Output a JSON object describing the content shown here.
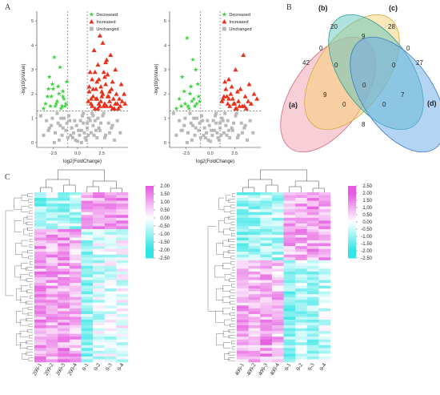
{
  "figure": {
    "panel_labels": {
      "A": "A",
      "B": "B",
      "C": "C"
    }
  },
  "chart_data": [
    {
      "type": "scatter",
      "id": "volcano-left",
      "xlabel": "log2(FoldChange)",
      "ylabel": "-log10(pValue)",
      "xlim": [
        -4.2,
        5.2
      ],
      "ylim": [
        -0.2,
        5.4
      ],
      "x_ticks": [
        "-2.5",
        "0.0",
        "2.5"
      ],
      "y_ticks": [
        "0",
        "1",
        "2",
        "3",
        "4",
        "5"
      ],
      "legend": [
        "Decreased",
        "Increased",
        "Unchanged"
      ],
      "legend_position": "top-right",
      "thresholds": {
        "x": [
          -1,
          1
        ],
        "y": 1.3
      },
      "colors": {
        "decreased": "#3cd23c",
        "increased": "#e8301a",
        "unchanged": "#b8b8b8",
        "threshold": "#555555"
      },
      "series": [
        {
          "name": "Decreased",
          "x": [
            -1.8,
            -2.6,
            -3.1,
            -2.2,
            -1.5,
            -2.9,
            -1.3,
            -2.4,
            -3.5,
            -1.9,
            -2.1,
            -1.6,
            -2.7,
            -3.3,
            -1.4,
            -2.0,
            -2.5,
            -1.7,
            -3.0,
            -2.3,
            -1.2,
            -1.1,
            -2.8,
            -1.5
          ],
          "y": [
            3.1,
            2.4,
            1.9,
            1.6,
            2.1,
            2.7,
            1.5,
            3.5,
            1.4,
            2.0,
            1.7,
            1.5,
            1.9,
            1.6,
            1.8,
            2.3,
            2.2,
            1.4,
            2.2,
            1.5,
            1.6,
            2.5,
            1.5,
            1.9
          ]
        },
        {
          "name": "Increased",
          "x": [
            2.6,
            2.1,
            3.4,
            1.8,
            2.9,
            1.5,
            3.9,
            4.5,
            1.6,
            2.3,
            1.2,
            3.1,
            4.0,
            2.5,
            3.6,
            4.3,
            1.9,
            2.0,
            2.8,
            3.3,
            1.4,
            2.4,
            3.0,
            4.8,
            3.8,
            1.7,
            2.2,
            3.5,
            2.7,
            4.1,
            1.3,
            2.6,
            3.2,
            1.8,
            2.9,
            4.4,
            1.1,
            2.0,
            3.7,
            2.5,
            1.6,
            3.0,
            4.6,
            2.2,
            1.5,
            3.4,
            2.8,
            1.9,
            3.3,
            4.2,
            2.4,
            1.2,
            3.9,
            2.1,
            2.7,
            1.4,
            3.6,
            4.9,
            2.3,
            3.1
          ],
          "y": [
            4.1,
            3.2,
            3.6,
            2.9,
            3.3,
            2.6,
            3.0,
            2.4,
            2.2,
            4.4,
            2.1,
            2.8,
            2.0,
            1.9,
            2.5,
            1.8,
            1.8,
            2.5,
            2.7,
            1.7,
            1.6,
            2.3,
            1.5,
            2.0,
            1.4,
            3.8,
            1.6,
            2.2,
            1.5,
            1.6,
            2.9,
            2.0,
            1.9,
            1.4,
            2.4,
            1.5,
            1.7,
            1.8,
            1.8,
            2.1,
            1.9,
            3.4,
            1.7,
            2.6,
            1.5,
            1.5,
            1.6,
            2.2,
            2.1,
            1.4,
            1.7,
            2.3,
            1.6,
            1.4,
            2.9,
            1.8,
            1.4,
            1.6,
            1.5,
            1.9
          ]
        },
        {
          "name": "Unchanged",
          "x": [
            -3.8,
            -3.2,
            -2.9,
            -2.6,
            -2.3,
            -2.0,
            -1.8,
            -1.6,
            -1.4,
            -1.2,
            -1.0,
            -0.8,
            -0.6,
            -0.4,
            -0.2,
            0.0,
            0.2,
            0.4,
            0.6,
            0.8,
            1.0,
            1.2,
            1.4,
            1.6,
            1.8,
            2.0,
            2.3,
            2.6,
            2.9,
            3.2,
            3.5,
            3.8,
            4.1,
            -3.5,
            -2.7,
            -2.1,
            -1.5,
            -0.9,
            -0.5,
            -0.1,
            0.3,
            0.7,
            1.1,
            1.5,
            1.9,
            2.4,
            2.8,
            3.3,
            -2.4,
            -1.7,
            -1.1,
            -0.7,
            0.1,
            0.5,
            0.9,
            1.3,
            1.7,
            2.2,
            2.7,
            3.6,
            -3.0,
            -1.9,
            -0.3,
            0.6,
            1.0,
            4.4,
            -0.6,
            0.4,
            1.6,
            2.1
          ],
          "y": [
            1.1,
            0.9,
            0.6,
            1.0,
            0.4,
            0.8,
            0.7,
            0.3,
            1.0,
            0.5,
            0.2,
            0.9,
            0.6,
            0.4,
            0.1,
            0.05,
            0.3,
            0.5,
            0.8,
            0.2,
            0.6,
            1.0,
            0.4,
            0.7,
            0.9,
            0.2,
            0.5,
            1.1,
            0.3,
            0.8,
            0.6,
            0.1,
            0.9,
            0.3,
            0.7,
            1.2,
            0.6,
            1.1,
            0.2,
            0.7,
            0.9,
            0.4,
            0.3,
            1.2,
            0.5,
            0.8,
            0.2,
            0.4,
            0.0,
            1.0,
            0.8,
            0.3,
            0.5,
            1.1,
            0.1,
            0.9,
            0.3,
            0.6,
            1.2,
            0.7,
            0.5,
            0.1,
            0.9,
            1.2,
            0.8,
            0.4,
            0.6,
            0.0,
            1.1,
            1.0
          ]
        }
      ]
    },
    {
      "type": "scatter",
      "id": "volcano-right",
      "xlabel": "log2(FoldChange)",
      "ylabel": "-log10(pValue)",
      "xlim": [
        -4.2,
        5.2
      ],
      "ylim": [
        -0.2,
        5.4
      ],
      "x_ticks": [
        "-2.5",
        "0.0",
        "2.5"
      ],
      "y_ticks": [
        "0",
        "1",
        "2",
        "3",
        "4",
        "5"
      ],
      "legend": [
        "Decreased",
        "Increased",
        "Unchanged"
      ],
      "legend_position": "top-right",
      "thresholds": {
        "x": [
          -1,
          1
        ],
        "y": 1.3
      },
      "colors": {
        "decreased": "#3cd23c",
        "increased": "#e8301a",
        "unchanged": "#b8b8b8",
        "threshold": "#555555"
      },
      "series": [
        {
          "name": "Decreased",
          "x": [
            -2.4,
            -1.8,
            -2.9,
            -1.5,
            -2.1,
            -3.2,
            -1.3,
            -2.6,
            -1.9,
            -1.6,
            -2.3,
            -3.5,
            -1.2,
            -2.0,
            -2.7,
            -1.4,
            -1.7,
            -2.2,
            -3.0,
            -1.1
          ],
          "y": [
            4.3,
            3.4,
            2.7,
            3.0,
            2.0,
            1.8,
            2.4,
            1.6,
            1.7,
            1.5,
            1.5,
            1.4,
            1.9,
            2.3,
            2.1,
            1.6,
            1.8,
            1.4,
            1.5,
            1.7
          ]
        },
        {
          "name": "Increased",
          "x": [
            3.4,
            2.6,
            1.9,
            4.0,
            2.2,
            3.1,
            1.5,
            2.8,
            4.5,
            1.7,
            3.6,
            2.3,
            1.3,
            2.9,
            3.9,
            1.8,
            2.5,
            4.2,
            3.3,
            2.0,
            1.6,
            2.7,
            3.7,
            1.4,
            2.4,
            4.8,
            3.0,
            2.1,
            1.2,
            3.5,
            2.6,
            1.9
          ],
          "y": [
            3.6,
            3.0,
            2.6,
            2.4,
            2.3,
            2.2,
            2.5,
            2.1,
            2.0,
            1.9,
            1.9,
            1.8,
            1.8,
            1.7,
            1.7,
            1.6,
            1.6,
            1.6,
            1.5,
            1.5,
            2.2,
            1.4,
            1.4,
            1.9,
            1.6,
            1.8,
            1.5,
            2.0,
            1.7,
            1.5,
            1.4,
            1.8
          ]
        },
        {
          "name": "Unchanged",
          "x": [
            -3.8,
            -3.2,
            -2.9,
            -2.6,
            -2.3,
            -2.0,
            -1.8,
            -1.6,
            -1.4,
            -1.2,
            -1.0,
            -0.8,
            -0.6,
            -0.4,
            -0.2,
            0.0,
            0.2,
            0.4,
            0.6,
            0.8,
            1.0,
            1.2,
            1.4,
            1.6,
            1.8,
            2.0,
            2.3,
            2.6,
            2.9,
            3.2,
            3.5,
            3.8,
            4.1,
            -3.5,
            -2.7,
            -2.1,
            -1.5,
            -0.9,
            -0.5,
            -0.1,
            0.3,
            0.7,
            1.1,
            1.5,
            1.9,
            2.4,
            2.8,
            3.3,
            -2.4,
            -1.7,
            -1.1,
            -0.7,
            0.1,
            0.5,
            0.9,
            1.3,
            1.7,
            2.2,
            2.7,
            3.6,
            -3.0,
            -1.9,
            -0.3,
            0.6,
            1.0,
            4.4
          ],
          "y": [
            1.2,
            0.9,
            0.5,
            1.0,
            0.4,
            0.8,
            0.7,
            0.3,
            1.0,
            0.5,
            0.2,
            0.9,
            0.6,
            0.4,
            0.1,
            0.05,
            0.3,
            0.5,
            0.8,
            0.2,
            0.6,
            1.0,
            0.4,
            0.7,
            0.9,
            0.2,
            0.5,
            1.1,
            0.3,
            0.8,
            0.6,
            0.1,
            0.9,
            0.3,
            0.7,
            1.2,
            0.6,
            1.1,
            0.2,
            0.7,
            0.9,
            0.4,
            0.3,
            1.2,
            0.5,
            0.8,
            0.2,
            0.4,
            0.0,
            1.0,
            0.8,
            0.3,
            0.5,
            1.1,
            0.1,
            0.9,
            0.3,
            0.6,
            1.2,
            0.7,
            0.5,
            0.1,
            0.9,
            1.2,
            0.8,
            0.4
          ]
        }
      ]
    },
    {
      "type": "heatmap",
      "id": "heatmap-left",
      "columns": [
        "200-1",
        "200-2",
        "200-3",
        "200-4",
        "0-1",
        "0-2",
        "0-3",
        "0-4"
      ],
      "rows": 60,
      "color_scale": [
        "#33e5e5",
        "#ffffff",
        "#e55ae0"
      ],
      "scale_ticks": [
        "2.00",
        "1.50",
        "1.00",
        "0.50",
        "0.00",
        "-0.50",
        "-1.00",
        "-1.50",
        "-2.00",
        "-2.50"
      ],
      "scale_range": [
        -2.5,
        2.0
      ],
      "groups": [
        {
          "rows": 13,
          "means": [
            -1.0,
            -0.7,
            -0.9,
            -0.8,
            1.0,
            1.2,
            0.9,
            1.1
          ]
        },
        {
          "rows": 47,
          "means": [
            1.2,
            1.0,
            1.1,
            0.9,
            -0.9,
            -0.4,
            -0.3,
            -0.2
          ]
        }
      ]
    },
    {
      "type": "heatmap",
      "id": "heatmap-right",
      "columns": [
        "400-1",
        "400-2",
        "400-3",
        "400-4",
        "0-1",
        "0-2",
        "0-3",
        "0-4"
      ],
      "rows": 60,
      "color_scale": [
        "#33e5e5",
        "#ffffff",
        "#e55ae0"
      ],
      "scale_ticks": [
        "2.50",
        "2.00",
        "1.50",
        "1.00",
        "0.50",
        "0.00",
        "-0.50",
        "-1.00",
        "-1.50",
        "-2.00",
        "-2.50"
      ],
      "scale_range": [
        -2.5,
        2.5
      ],
      "groups": [
        {
          "rows": 24,
          "means": [
            -1.0,
            -0.9,
            -0.8,
            -0.8,
            0.9,
            1.0,
            1.1,
            1.0
          ]
        },
        {
          "rows": 36,
          "means": [
            1.0,
            0.9,
            1.1,
            0.8,
            -1.0,
            -0.7,
            -0.8,
            -0.6
          ]
        }
      ]
    }
  ],
  "venn": {
    "sets": [
      "(a)",
      "(b)",
      "(c)",
      "(d)"
    ],
    "colors": {
      "a": "#f2a7b4",
      "b": "#f8cf70",
      "c": "#5ec7c0",
      "d": "#6aa9e8"
    },
    "regions": {
      "a_only": "42",
      "b_only": "20",
      "c_only": "28",
      "d_only": "27",
      "ab": "0",
      "bc": "9",
      "cd": "0",
      "abc": "0",
      "bcd": "0",
      "abcd": "0",
      "ac": "9",
      "bd": "7",
      "acd": "0",
      "abd": "0",
      "ad": "8"
    }
  }
}
